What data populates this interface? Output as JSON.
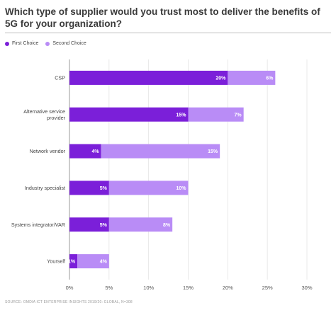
{
  "title": "Which type of supplier would you trust most to deliver the benefits of 5G for your organization?",
  "source": "SOURCE: OMDIA ICT ENTERPRISE INSIGHTS 2019/20: GLOBAL, N=308",
  "colors": {
    "first": "#7b1fd9",
    "second": "#b98cf6",
    "grid": "#e3e3e3",
    "axis": "#9a9a9a"
  },
  "chart_data": {
    "type": "bar",
    "orientation": "horizontal",
    "stacked": true,
    "categories": [
      "CSP",
      "Alternative service provider",
      "Network vendor",
      "Industry specialist",
      "Systems integrator/VAR",
      "Yourself"
    ],
    "series": [
      {
        "name": "First Choice",
        "values": [
          20,
          15,
          4,
          5,
          5,
          1
        ],
        "labels": [
          "20%",
          "15%",
          "4%",
          "5%",
          "5%",
          "1%"
        ]
      },
      {
        "name": "Second Choice",
        "values": [
          6,
          7,
          15,
          10,
          8,
          4
        ],
        "labels": [
          "6%",
          "7%",
          "15%",
          "10%",
          "8%",
          "4%"
        ]
      }
    ],
    "xlim": [
      0,
      30
    ],
    "xticks": [
      0,
      5,
      10,
      15,
      20,
      25,
      30
    ],
    "xtick_labels": [
      "0%",
      "5%",
      "10%",
      "15%",
      "20%",
      "25%",
      "30%"
    ],
    "grid": true,
    "legend": "top-left"
  }
}
